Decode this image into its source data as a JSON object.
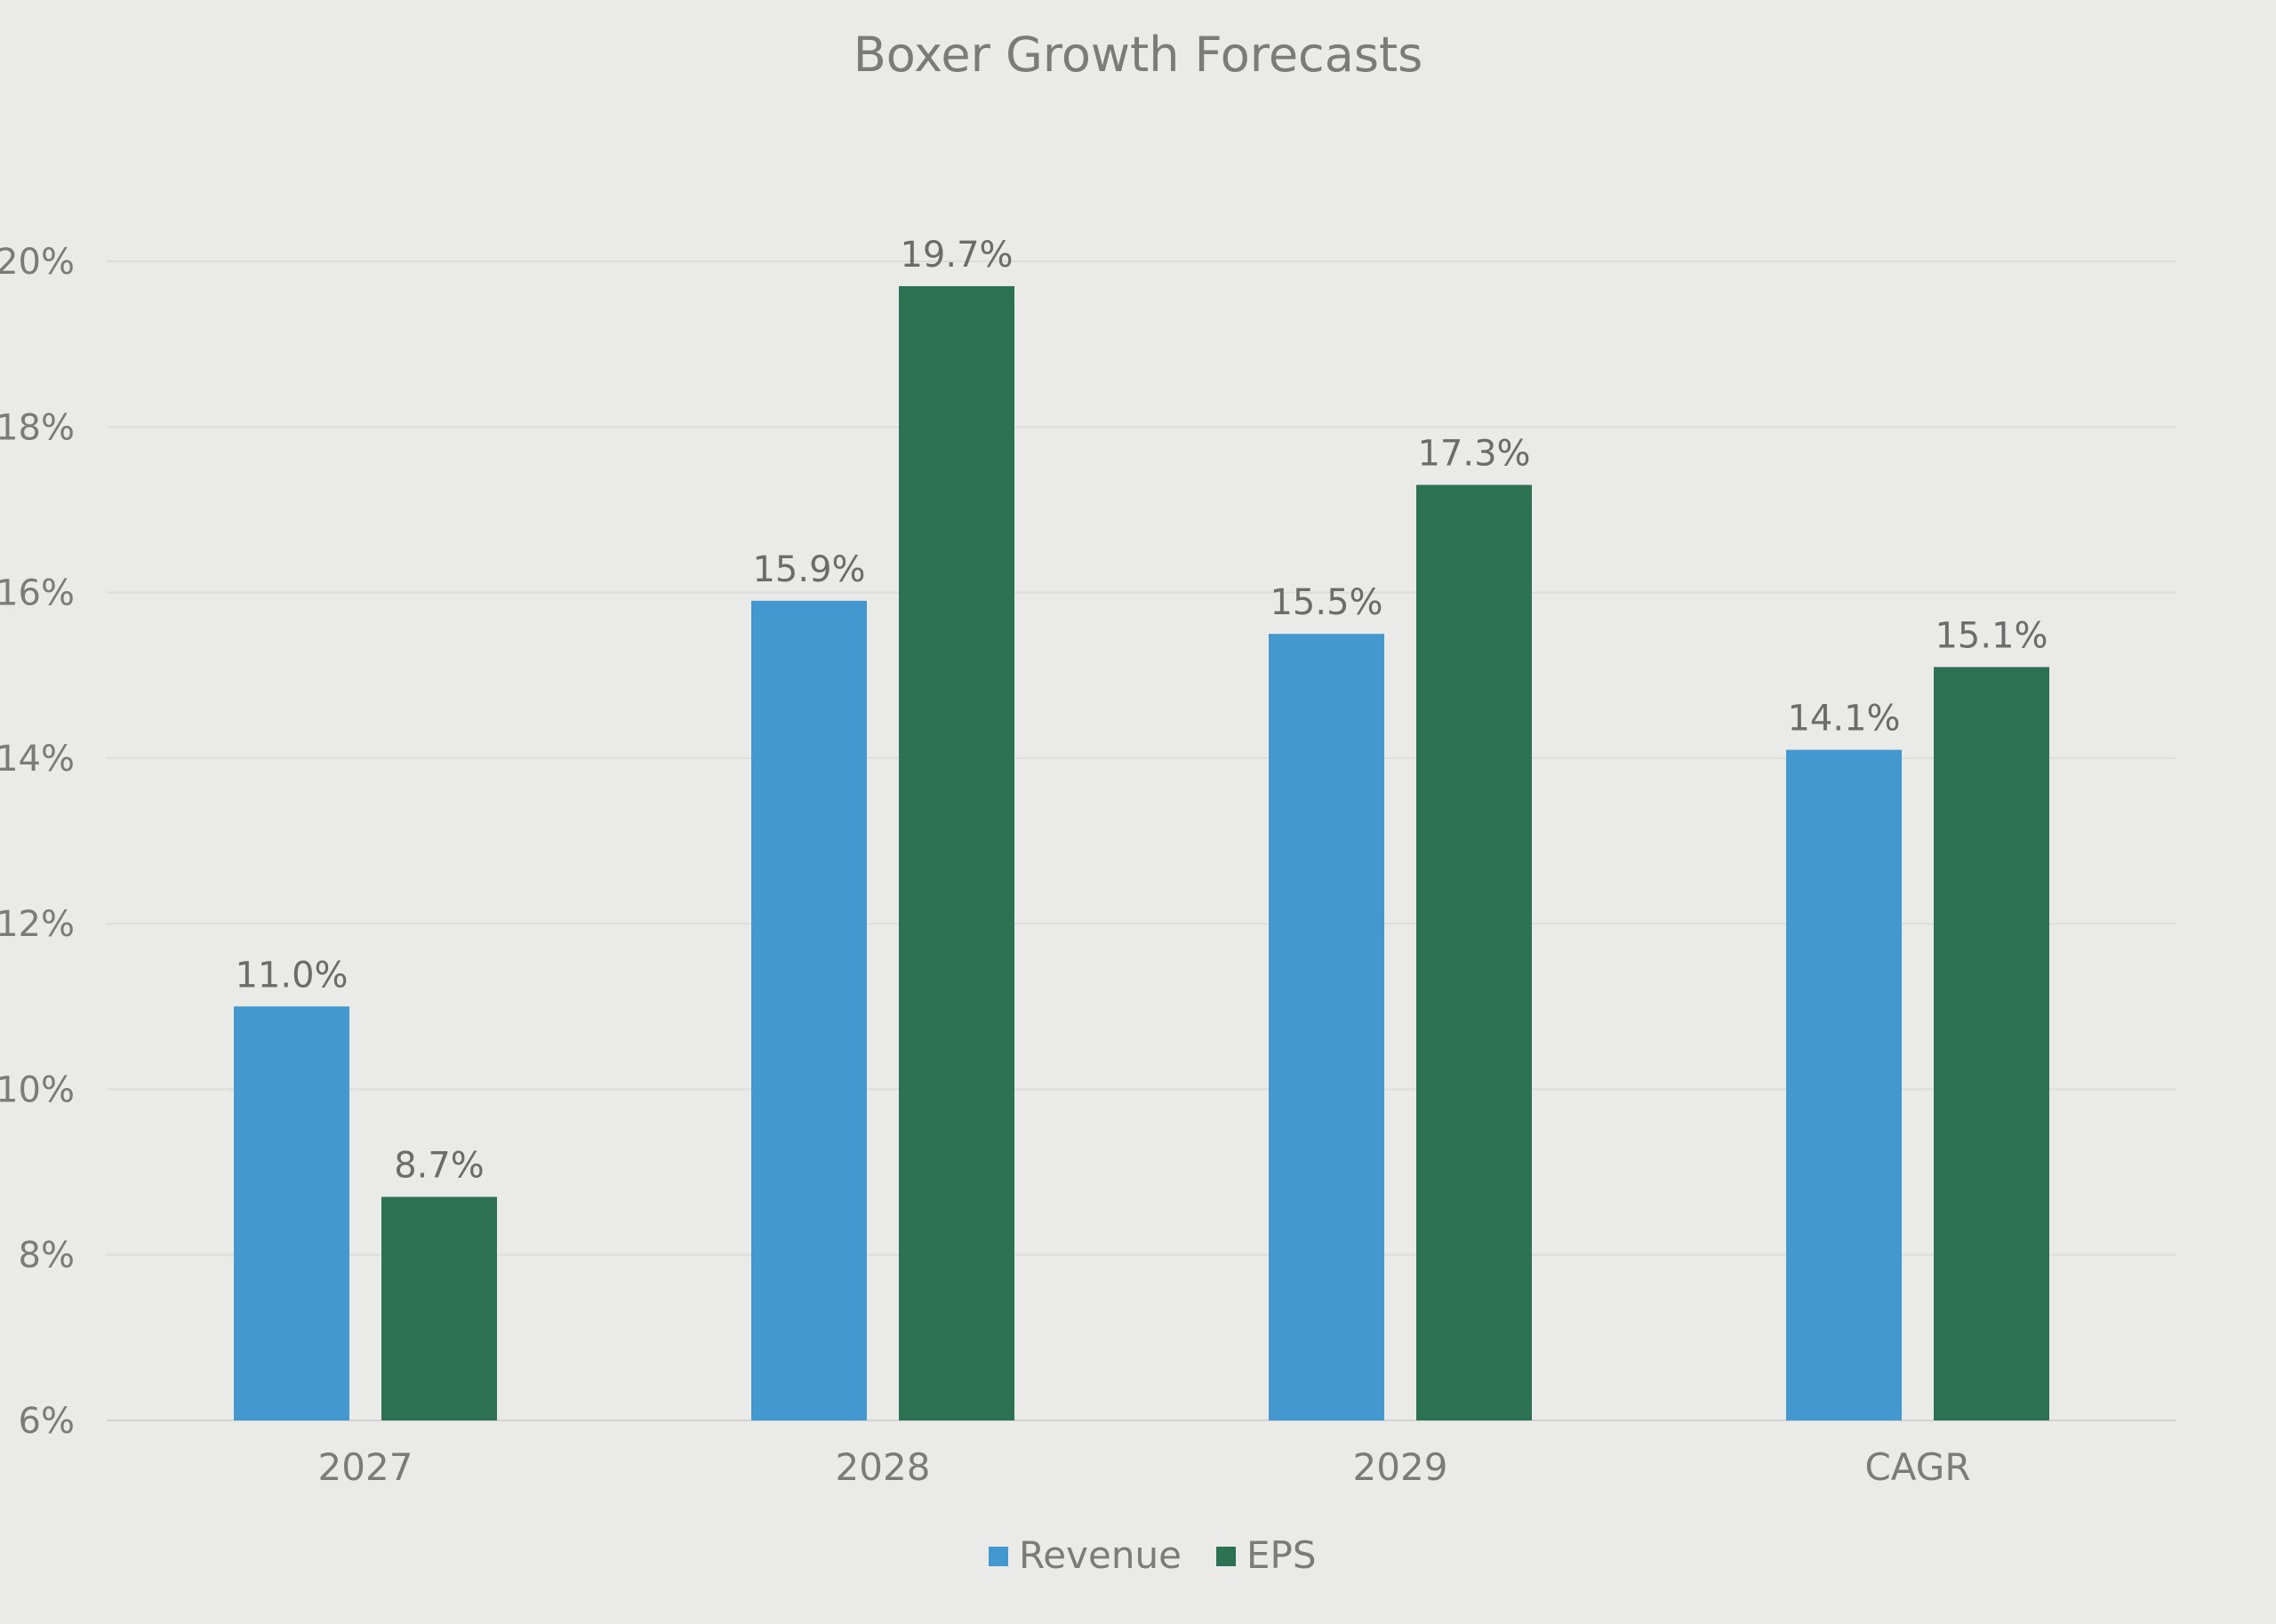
{
  "chart_data": {
    "type": "bar",
    "title": "Boxer Growth Forecasts",
    "categories": [
      "2027",
      "2028",
      "2029",
      "CAGR"
    ],
    "series": [
      {
        "name": "Revenue",
        "color": "#4398d0",
        "values": [
          11.0,
          15.9,
          15.5,
          14.1
        ],
        "labels": [
          "11.0%",
          "15.9%",
          "15.5%",
          "14.1%"
        ]
      },
      {
        "name": "EPS",
        "color": "#2b7152",
        "values": [
          8.7,
          19.7,
          17.3,
          15.1
        ],
        "labels": [
          "8.7%",
          "19.7%",
          "17.3%",
          "15.1%"
        ]
      }
    ],
    "ylim": [
      6,
      20
    ],
    "yticks": [
      6,
      8,
      10,
      12,
      14,
      16,
      18,
      20
    ],
    "ytick_labels": [
      "6%",
      "8%",
      "10%",
      "12%",
      "14%",
      "16%",
      "18%",
      "20%"
    ],
    "grid": true,
    "legend_position": "bottom"
  }
}
